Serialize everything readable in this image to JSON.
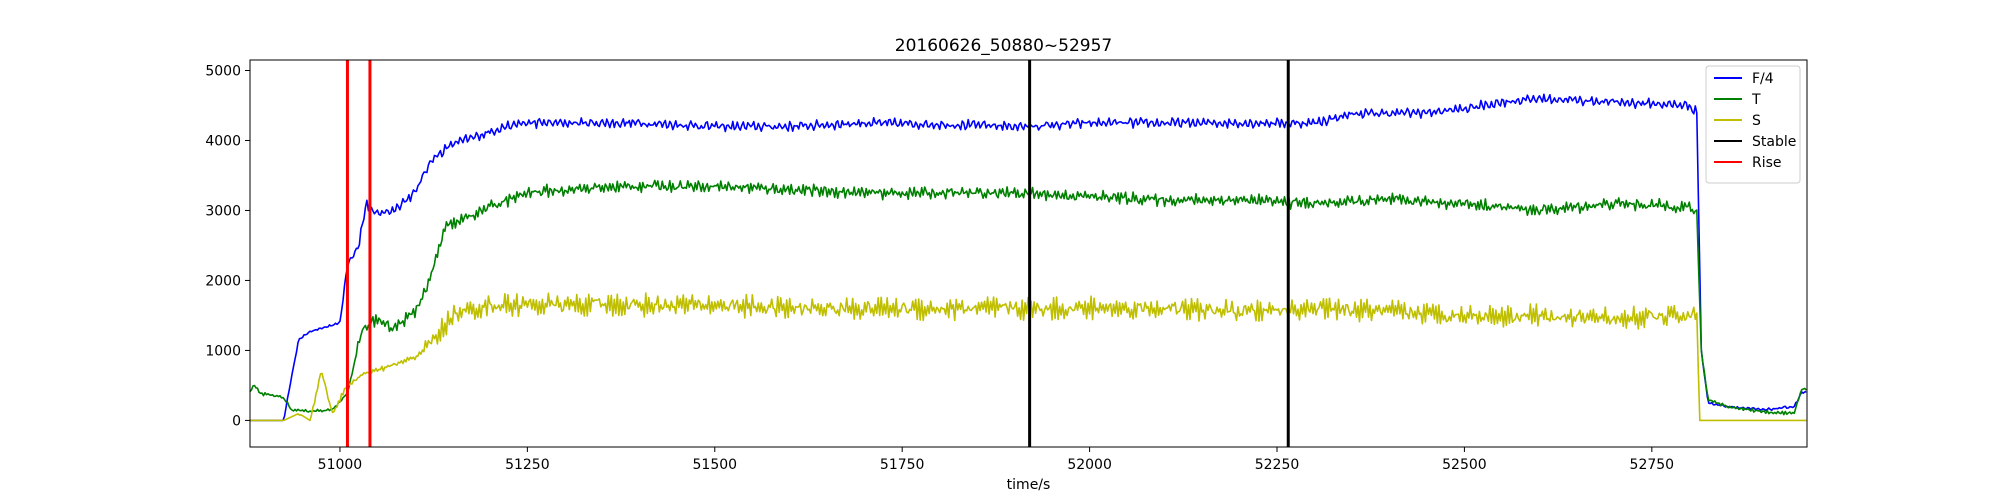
{
  "chart_data": {
    "type": "line",
    "title": "20160626_50880~52957",
    "xlabel": "time/s",
    "ylabel": "",
    "xlim": [
      50880,
      52957
    ],
    "ylim": [
      -380,
      5150
    ],
    "xticks": [
      51000,
      51250,
      51500,
      51750,
      52000,
      52250,
      52500,
      52750
    ],
    "xtick_labels": [
      "51000",
      "51250",
      "51500",
      "51750",
      "52000",
      "52250",
      "52500",
      "52750"
    ],
    "yticks": [
      0,
      1000,
      2000,
      3000,
      4000,
      5000
    ],
    "ytick_labels": [
      "0",
      "1000",
      "2000",
      "3000",
      "4000",
      "5000"
    ],
    "grid": false,
    "legend_position": "top-right",
    "legend": [
      {
        "label": "F/4",
        "color": "#0000ff"
      },
      {
        "label": "T",
        "color": "#008000"
      },
      {
        "label": "S",
        "color": "#bfbf00"
      },
      {
        "label": "Stable",
        "color": "#000000"
      },
      {
        "label": "Rise",
        "color": "#ff0000"
      }
    ],
    "series": [
      {
        "name": "F/4",
        "color": "#0000ff",
        "noise": 80,
        "points": [
          [
            50880,
            0
          ],
          [
            50925,
            0
          ],
          [
            50935,
            600
          ],
          [
            50945,
            1150
          ],
          [
            50960,
            1270
          ],
          [
            50980,
            1330
          ],
          [
            51000,
            1400
          ],
          [
            51010,
            2250
          ],
          [
            51025,
            2500
          ],
          [
            51035,
            3100
          ],
          [
            51045,
            2950
          ],
          [
            51070,
            3000
          ],
          [
            51100,
            3250
          ],
          [
            51120,
            3700
          ],
          [
            51150,
            3950
          ],
          [
            51180,
            4050
          ],
          [
            51220,
            4200
          ],
          [
            51250,
            4250
          ],
          [
            51300,
            4250
          ],
          [
            51400,
            4250
          ],
          [
            51500,
            4200
          ],
          [
            51600,
            4200
          ],
          [
            51700,
            4250
          ],
          [
            51800,
            4230
          ],
          [
            51920,
            4200
          ],
          [
            52000,
            4250
          ],
          [
            52100,
            4250
          ],
          [
            52200,
            4250
          ],
          [
            52265,
            4250
          ],
          [
            52300,
            4250
          ],
          [
            52350,
            4380
          ],
          [
            52450,
            4400
          ],
          [
            52500,
            4450
          ],
          [
            52550,
            4550
          ],
          [
            52600,
            4600
          ],
          [
            52700,
            4550
          ],
          [
            52800,
            4500
          ],
          [
            52810,
            4400
          ],
          [
            52816,
            1000
          ],
          [
            52825,
            250
          ],
          [
            52850,
            200
          ],
          [
            52900,
            150
          ],
          [
            52940,
            200
          ],
          [
            52950,
            400
          ]
        ]
      },
      {
        "name": "T",
        "color": "#008000",
        "noise": 100,
        "points": [
          [
            50880,
            400
          ],
          [
            50885,
            500
          ],
          [
            50895,
            380
          ],
          [
            50925,
            330
          ],
          [
            50935,
            150
          ],
          [
            50950,
            130
          ],
          [
            50990,
            150
          ],
          [
            51010,
            400
          ],
          [
            51030,
            1300
          ],
          [
            51050,
            1450
          ],
          [
            51070,
            1300
          ],
          [
            51100,
            1550
          ],
          [
            51120,
            2000
          ],
          [
            51140,
            2750
          ],
          [
            51170,
            2900
          ],
          [
            51200,
            3050
          ],
          [
            51250,
            3250
          ],
          [
            51300,
            3300
          ],
          [
            51400,
            3350
          ],
          [
            51500,
            3350
          ],
          [
            51600,
            3300
          ],
          [
            51700,
            3250
          ],
          [
            51800,
            3250
          ],
          [
            51900,
            3250
          ],
          [
            52000,
            3200
          ],
          [
            52100,
            3150
          ],
          [
            52200,
            3150
          ],
          [
            52300,
            3100
          ],
          [
            52400,
            3150
          ],
          [
            52500,
            3100
          ],
          [
            52600,
            3000
          ],
          [
            52700,
            3100
          ],
          [
            52800,
            3050
          ],
          [
            52810,
            2950
          ],
          [
            52816,
            1000
          ],
          [
            52825,
            300
          ],
          [
            52850,
            200
          ],
          [
            52900,
            120
          ],
          [
            52940,
            100
          ],
          [
            52950,
            450
          ]
        ]
      },
      {
        "name": "S",
        "color": "#bfbf00",
        "noise": 180,
        "points": [
          [
            50880,
            0
          ],
          [
            50925,
            0
          ],
          [
            50945,
            100
          ],
          [
            50960,
            0
          ],
          [
            50975,
            700
          ],
          [
            50990,
            100
          ],
          [
            51010,
            500
          ],
          [
            51030,
            650
          ],
          [
            51060,
            750
          ],
          [
            51100,
            900
          ],
          [
            51130,
            1200
          ],
          [
            51150,
            1500
          ],
          [
            51200,
            1650
          ],
          [
            51300,
            1650
          ],
          [
            51400,
            1650
          ],
          [
            51500,
            1650
          ],
          [
            51600,
            1600
          ],
          [
            51700,
            1600
          ],
          [
            51800,
            1600
          ],
          [
            51900,
            1600
          ],
          [
            52000,
            1600
          ],
          [
            52100,
            1600
          ],
          [
            52200,
            1550
          ],
          [
            52300,
            1600
          ],
          [
            52400,
            1550
          ],
          [
            52500,
            1500
          ],
          [
            52600,
            1500
          ],
          [
            52700,
            1450
          ],
          [
            52800,
            1500
          ],
          [
            52810,
            1500
          ],
          [
            52814,
            0
          ],
          [
            52957,
            0
          ]
        ]
      }
    ],
    "vlines": [
      {
        "name": "Rise",
        "x": 51010,
        "color": "#ff0000"
      },
      {
        "name": "Rise",
        "x": 51040,
        "color": "#ff0000"
      },
      {
        "name": "Stable",
        "x": 51920,
        "color": "#000000"
      },
      {
        "name": "Stable",
        "x": 52265,
        "color": "#000000"
      }
    ]
  }
}
